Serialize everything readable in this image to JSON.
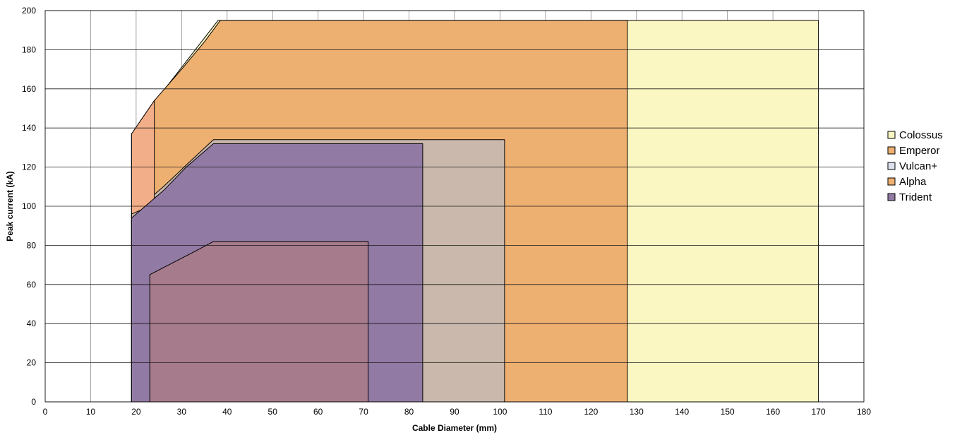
{
  "chart_data": {
    "type": "area",
    "title": "",
    "xlabel": "Cable Diameter (mm)",
    "ylabel": "Peak current (kA)",
    "xlim": [
      0,
      180
    ],
    "ylim": [
      0,
      200
    ],
    "x_ticks": [
      0,
      10,
      20,
      30,
      40,
      50,
      60,
      70,
      80,
      90,
      100,
      110,
      120,
      130,
      140,
      150,
      160,
      170,
      180
    ],
    "y_ticks": [
      0,
      20,
      40,
      60,
      80,
      100,
      120,
      140,
      160,
      180,
      200
    ],
    "grid": true,
    "legend_position": "right",
    "series": [
      {
        "name": "Colossus",
        "color": "#faf7c2",
        "points": [
          [
            19,
            0
          ],
          [
            19,
            137
          ],
          [
            25,
            156
          ],
          [
            38,
            195
          ],
          [
            170,
            195
          ],
          [
            170,
            0
          ]
        ]
      },
      {
        "name": "Emperor",
        "color": "#eeb071",
        "points": [
          [
            19,
            0
          ],
          [
            19,
            137
          ],
          [
            24,
            154
          ],
          [
            30,
            170
          ],
          [
            35,
            184
          ],
          [
            38.5,
            195
          ],
          [
            128,
            195
          ],
          [
            128,
            0
          ]
        ]
      },
      {
        "name": "Vulcan+",
        "color": "#c9b8ab",
        "points": [
          [
            19,
            0
          ],
          [
            19,
            96
          ],
          [
            26,
            110
          ],
          [
            31,
            121
          ],
          [
            37,
            134
          ],
          [
            101,
            134
          ],
          [
            101,
            0
          ]
        ]
      },
      {
        "name": "Alpha",
        "color": "#f2ae88",
        "points": [
          [
            19,
            0
          ],
          [
            19,
            137
          ],
          [
            24,
            154
          ],
          [
            24,
            101
          ],
          [
            19,
            96
          ]
        ]
      },
      {
        "name": "Trident",
        "color": "#917aa3",
        "points": [
          [
            19,
            0
          ],
          [
            19,
            94
          ],
          [
            26,
            108
          ],
          [
            31,
            120
          ],
          [
            37,
            132
          ],
          [
            83,
            132
          ],
          [
            83,
            0
          ]
        ]
      },
      {
        "name": "",
        "color": "#a67b8c",
        "points": [
          [
            23,
            0
          ],
          [
            23,
            65
          ],
          [
            28,
            71
          ],
          [
            33,
            77
          ],
          [
            37,
            82
          ],
          [
            71,
            82
          ],
          [
            71,
            0
          ]
        ]
      }
    ],
    "legend": [
      {
        "name": "Colossus",
        "color": "#faf7c2"
      },
      {
        "name": "Emperor",
        "color": "#eeb071"
      },
      {
        "name": "Vulcan+",
        "color": "#dce2ee"
      },
      {
        "name": "Alpha",
        "color": "#eeb071"
      },
      {
        "name": "Trident",
        "color": "#917aa3"
      }
    ]
  }
}
